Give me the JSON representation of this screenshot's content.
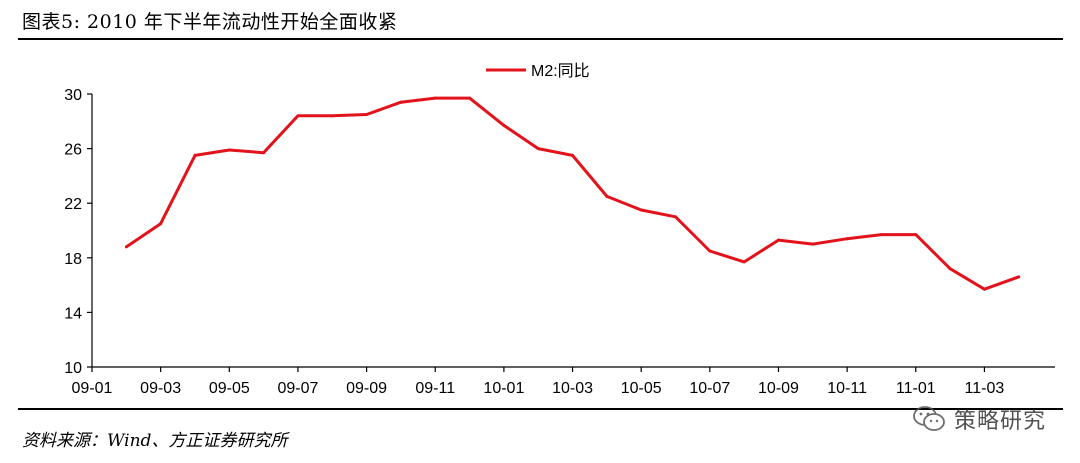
{
  "figure": {
    "title": "图表5:  2010 年下半年流动性开始全面收紧",
    "source": "资料来源：Wind、方正证券研究所",
    "watermark_text": "策略研究",
    "watermark_icon": "wechat-icon"
  },
  "colors": {
    "series": "#e3131b",
    "axis": "#000000"
  },
  "chart_data": {
    "type": "line",
    "title": "",
    "xlabel": "",
    "ylabel": "",
    "ylim": [
      10,
      30
    ],
    "yticks": [
      10,
      14,
      18,
      22,
      26,
      30
    ],
    "xtick_labels": [
      "09-01",
      "09-03",
      "09-05",
      "09-07",
      "09-09",
      "09-11",
      "10-01",
      "10-03",
      "10-05",
      "10-07",
      "10-09",
      "10-11",
      "11-01",
      "11-03"
    ],
    "legend": {
      "position": "top-center"
    },
    "grid": false,
    "series": [
      {
        "name": "M2:同比",
        "x": [
          "2009-02",
          "2009-03",
          "2009-04",
          "2009-05",
          "2009-06",
          "2009-07",
          "2009-08",
          "2009-09",
          "2009-10",
          "2009-11",
          "2009-12",
          "2010-01",
          "2010-02",
          "2010-03",
          "2010-04",
          "2010-05",
          "2010-06",
          "2010-07",
          "2010-08",
          "2010-09",
          "2010-10",
          "2010-11",
          "2010-12",
          "2011-01",
          "2011-02",
          "2011-03",
          "2011-04"
        ],
        "values": [
          18.8,
          20.5,
          25.5,
          25.9,
          25.7,
          28.4,
          28.4,
          28.5,
          29.4,
          29.7,
          29.7,
          27.7,
          26.0,
          25.5,
          22.5,
          21.5,
          21.0,
          18.5,
          17.7,
          19.3,
          19.0,
          19.4,
          19.7,
          19.7,
          17.2,
          15.7,
          16.6
        ]
      }
    ]
  }
}
